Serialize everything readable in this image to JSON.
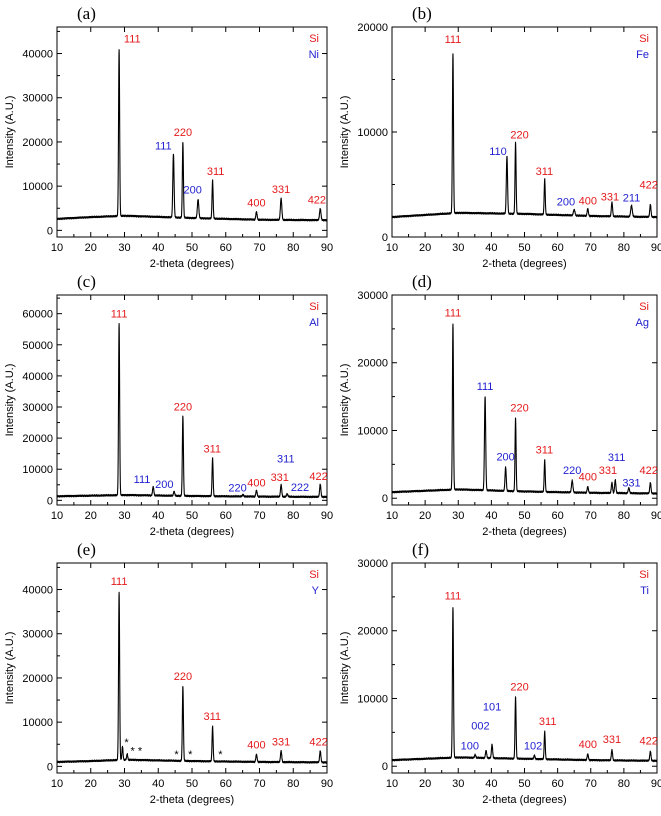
{
  "figure": {
    "colors": {
      "si": "#e41a1c",
      "metal": "#1f1fd0",
      "trace": "#000000",
      "axis": "#000000"
    }
  },
  "chart_data": [
    {
      "type": "line",
      "panel": "(a)",
      "metal": "Ni",
      "xlabel": "2-theta (degrees)",
      "ylabel": "Intensity (A.U.)",
      "xlim": [
        10,
        90
      ],
      "ylim": [
        -1500,
        46000
      ],
      "ytick_step": 10000,
      "xticks": [
        10,
        20,
        30,
        40,
        50,
        60,
        70,
        80,
        90
      ],
      "yticks": [
        0,
        10000,
        20000,
        30000,
        40000
      ],
      "legend": [
        {
          "text": "Si",
          "color": "#e41a1c"
        },
        {
          "text": "Ni",
          "color": "#1f1fd0"
        }
      ],
      "background": [
        [
          10,
          2600
        ],
        [
          20,
          3000
        ],
        [
          30,
          3300
        ],
        [
          50,
          2800
        ],
        [
          70,
          2400
        ],
        [
          90,
          2300
        ]
      ],
      "peaks": [
        {
          "x": 28.4,
          "y": 41000,
          "w": 0.3
        },
        {
          "x": 44.5,
          "y": 17300,
          "w": 0.35
        },
        {
          "x": 47.3,
          "y": 19800,
          "w": 0.3
        },
        {
          "x": 51.8,
          "y": 7000,
          "w": 0.4
        },
        {
          "x": 56.1,
          "y": 11300,
          "w": 0.3
        },
        {
          "x": 69.1,
          "y": 4200,
          "w": 0.35
        },
        {
          "x": 76.4,
          "y": 7200,
          "w": 0.4
        },
        {
          "x": 88.0,
          "y": 4900,
          "w": 0.4
        }
      ],
      "labels": [
        {
          "text": "111",
          "x": 32.3,
          "y": 42500,
          "color": "#e41a1c"
        },
        {
          "text": "111",
          "x": 41.5,
          "y": 18300,
          "color": "#1f1fd0"
        },
        {
          "text": "220",
          "x": 47.3,
          "y": 21400,
          "color": "#e41a1c"
        },
        {
          "text": "200",
          "x": 50.2,
          "y": 8300,
          "color": "#1f1fd0"
        },
        {
          "text": "311",
          "x": 57.0,
          "y": 12500,
          "color": "#e41a1c"
        },
        {
          "text": "400",
          "x": 69.1,
          "y": 5400,
          "color": "#e41a1c"
        },
        {
          "text": "331",
          "x": 76.4,
          "y": 8400,
          "color": "#e41a1c"
        },
        {
          "text": "422",
          "x": 87.0,
          "y": 6100,
          "color": "#e41a1c"
        }
      ],
      "markers": []
    },
    {
      "type": "line",
      "panel": "(b)",
      "metal": "Fe",
      "xlabel": "2-theta (degrees)",
      "ylabel": "Intensity (A.U.)",
      "xlim": [
        10,
        90
      ],
      "ylim": [
        0,
        20000
      ],
      "ytick_step": 10000,
      "xticks": [
        10,
        20,
        30,
        40,
        50,
        60,
        70,
        80,
        90
      ],
      "yticks": [
        0,
        10000,
        20000
      ],
      "legend": [
        {
          "text": "Si",
          "color": "#e41a1c"
        },
        {
          "text": "Fe",
          "color": "#1f1fd0"
        }
      ],
      "background": [
        [
          10,
          1900
        ],
        [
          20,
          2100
        ],
        [
          30,
          2300
        ],
        [
          50,
          2200
        ],
        [
          70,
          2000
        ],
        [
          90,
          1900
        ]
      ],
      "peaks": [
        {
          "x": 28.4,
          "y": 17500,
          "w": 0.3
        },
        {
          "x": 44.7,
          "y": 7700,
          "w": 0.35
        },
        {
          "x": 47.3,
          "y": 9000,
          "w": 0.3
        },
        {
          "x": 56.1,
          "y": 5500,
          "w": 0.3
        },
        {
          "x": 65.0,
          "y": 2600,
          "w": 0.45
        },
        {
          "x": 69.1,
          "y": 2700,
          "w": 0.35
        },
        {
          "x": 76.4,
          "y": 3300,
          "w": 0.35
        },
        {
          "x": 82.3,
          "y": 3000,
          "w": 0.45
        },
        {
          "x": 88.0,
          "y": 3100,
          "w": 0.35
        }
      ],
      "labels": [
        {
          "text": "111",
          "x": 28.4,
          "y": 18500,
          "color": "#e41a1c"
        },
        {
          "text": "110",
          "x": 42.0,
          "y": 7800,
          "color": "#1f1fd0"
        },
        {
          "text": "220",
          "x": 48.5,
          "y": 9400,
          "color": "#e41a1c"
        },
        {
          "text": "311",
          "x": 56.0,
          "y": 5900,
          "color": "#e41a1c"
        },
        {
          "text": "200",
          "x": 62.5,
          "y": 3000,
          "color": "#1f1fd0"
        },
        {
          "text": "400",
          "x": 69.1,
          "y": 3100,
          "color": "#e41a1c"
        },
        {
          "text": "331",
          "x": 75.8,
          "y": 3500,
          "color": "#e41a1c"
        },
        {
          "text": "211",
          "x": 82.3,
          "y": 3400,
          "color": "#1f1fd0"
        },
        {
          "text": "422",
          "x": 87.5,
          "y": 4600,
          "color": "#e41a1c"
        }
      ],
      "markers": []
    },
    {
      "type": "line",
      "panel": "(c)",
      "metal": "Al",
      "xlabel": "2-theta (degrees)",
      "ylabel": "Intensity (A.U.)",
      "xlim": [
        10,
        90
      ],
      "ylim": [
        -1500,
        66000
      ],
      "ytick_step": 10000,
      "xticks": [
        10,
        20,
        30,
        40,
        50,
        60,
        70,
        80,
        90
      ],
      "yticks": [
        0,
        10000,
        20000,
        30000,
        40000,
        50000,
        60000
      ],
      "legend": [
        {
          "text": "Si",
          "color": "#e41a1c"
        },
        {
          "text": "Al",
          "color": "#1f1fd0"
        }
      ],
      "background": [
        [
          10,
          1300
        ],
        [
          20,
          1500
        ],
        [
          30,
          1700
        ],
        [
          50,
          1400
        ],
        [
          70,
          1200
        ],
        [
          90,
          1100
        ]
      ],
      "peaks": [
        {
          "x": 28.4,
          "y": 57000,
          "w": 0.3
        },
        {
          "x": 38.5,
          "y": 4400,
          "w": 0.35
        },
        {
          "x": 44.7,
          "y": 2800,
          "w": 0.35
        },
        {
          "x": 47.3,
          "y": 27000,
          "w": 0.3
        },
        {
          "x": 56.1,
          "y": 13500,
          "w": 0.3
        },
        {
          "x": 65.1,
          "y": 1800,
          "w": 0.4
        },
        {
          "x": 69.1,
          "y": 3200,
          "w": 0.35
        },
        {
          "x": 76.4,
          "y": 5000,
          "w": 0.35
        },
        {
          "x": 78.2,
          "y": 2000,
          "w": 0.4
        },
        {
          "x": 88.0,
          "y": 5200,
          "w": 0.35
        }
      ],
      "labels": [
        {
          "text": "111",
          "x": 28.4,
          "y": 58800,
          "color": "#e41a1c"
        },
        {
          "text": "111",
          "x": 35.2,
          "y": 5600,
          "color": "#1f1fd0"
        },
        {
          "text": "200",
          "x": 41.8,
          "y": 4000,
          "color": "#1f1fd0"
        },
        {
          "text": "220",
          "x": 47.3,
          "y": 28800,
          "color": "#e41a1c"
        },
        {
          "text": "311",
          "x": 56.0,
          "y": 15300,
          "color": "#e41a1c"
        },
        {
          "text": "220",
          "x": 63.5,
          "y": 2900,
          "color": "#1f1fd0"
        },
        {
          "text": "400",
          "x": 69.1,
          "y": 4400,
          "color": "#e41a1c"
        },
        {
          "text": "331",
          "x": 76.0,
          "y": 6200,
          "color": "#e41a1c"
        },
        {
          "text": "311",
          "x": 77.8,
          "y": 12200,
          "color": "#1f1fd0"
        },
        {
          "text": "222",
          "x": 82.0,
          "y": 3000,
          "color": "#1f1fd0"
        },
        {
          "text": "422",
          "x": 87.5,
          "y": 6500,
          "color": "#e41a1c"
        }
      ],
      "markers": []
    },
    {
      "type": "line",
      "panel": "(d)",
      "metal": "Ag",
      "xlabel": "2-theta (degrees)",
      "ylabel": "Intensity (A.U.)",
      "xlim": [
        10,
        90
      ],
      "ylim": [
        -1000,
        30000
      ],
      "ytick_step": 10000,
      "xticks": [
        10,
        20,
        30,
        40,
        50,
        60,
        70,
        80,
        90
      ],
      "yticks": [
        0,
        10000,
        20000,
        30000
      ],
      "legend": [
        {
          "text": "Si",
          "color": "#e41a1c"
        },
        {
          "text": "Ag",
          "color": "#1f1fd0"
        }
      ],
      "background": [
        [
          10,
          900
        ],
        [
          20,
          1100
        ],
        [
          30,
          1300
        ],
        [
          50,
          1000
        ],
        [
          70,
          800
        ],
        [
          90,
          700
        ]
      ],
      "peaks": [
        {
          "x": 28.4,
          "y": 25800,
          "w": 0.3
        },
        {
          "x": 38.1,
          "y": 15000,
          "w": 0.35
        },
        {
          "x": 44.3,
          "y": 4600,
          "w": 0.35
        },
        {
          "x": 47.3,
          "y": 11800,
          "w": 0.3
        },
        {
          "x": 56.1,
          "y": 5600,
          "w": 0.3
        },
        {
          "x": 64.4,
          "y": 2600,
          "w": 0.4
        },
        {
          "x": 69.1,
          "y": 1700,
          "w": 0.35
        },
        {
          "x": 76.4,
          "y": 2300,
          "w": 0.35
        },
        {
          "x": 77.4,
          "y": 2700,
          "w": 0.35
        },
        {
          "x": 81.5,
          "y": 1500,
          "w": 0.4
        },
        {
          "x": 88.0,
          "y": 2300,
          "w": 0.35
        }
      ],
      "labels": [
        {
          "text": "111",
          "x": 28.4,
          "y": 26800,
          "color": "#e41a1c"
        },
        {
          "text": "111",
          "x": 38.1,
          "y": 16000,
          "color": "#1f1fd0"
        },
        {
          "text": "200",
          "x": 44.3,
          "y": 5600,
          "color": "#1f1fd0"
        },
        {
          "text": "220",
          "x": 48.5,
          "y": 12800,
          "color": "#e41a1c"
        },
        {
          "text": "311",
          "x": 56.0,
          "y": 6600,
          "color": "#e41a1c"
        },
        {
          "text": "220",
          "x": 64.4,
          "y": 3600,
          "color": "#1f1fd0"
        },
        {
          "text": "400",
          "x": 69.1,
          "y": 2600,
          "color": "#e41a1c"
        },
        {
          "text": "331",
          "x": 75.2,
          "y": 3600,
          "color": "#e41a1c"
        },
        {
          "text": "311",
          "x": 77.8,
          "y": 5500,
          "color": "#1f1fd0"
        },
        {
          "text": "331",
          "x": 82.3,
          "y": 1700,
          "color": "#1f1fd0"
        },
        {
          "text": "422",
          "x": 87.5,
          "y": 3600,
          "color": "#e41a1c"
        }
      ],
      "markers": []
    },
    {
      "type": "line",
      "panel": "(e)",
      "metal": "Y",
      "xlabel": "2-theta (degrees)",
      "ylabel": "Intensity (A.U.)",
      "xlim": [
        10,
        90
      ],
      "ylim": [
        -1500,
        46000
      ],
      "ytick_step": 10000,
      "xticks": [
        10,
        20,
        30,
        40,
        50,
        60,
        70,
        80,
        90
      ],
      "yticks": [
        0,
        10000,
        20000,
        30000,
        40000
      ],
      "legend": [
        {
          "text": "Si",
          "color": "#e41a1c"
        },
        {
          "text": "Y",
          "color": "#1f1fd0"
        }
      ],
      "background": [
        [
          10,
          1000
        ],
        [
          20,
          1200
        ],
        [
          30,
          1500
        ],
        [
          50,
          1200
        ],
        [
          70,
          1000
        ],
        [
          90,
          900
        ]
      ],
      "peaks": [
        {
          "x": 28.4,
          "y": 39500,
          "w": 0.3
        },
        {
          "x": 29.4,
          "y": 4500,
          "w": 0.3
        },
        {
          "x": 30.8,
          "y": 2800,
          "w": 0.3
        },
        {
          "x": 47.3,
          "y": 18000,
          "w": 0.3
        },
        {
          "x": 56.1,
          "y": 9000,
          "w": 0.3
        },
        {
          "x": 69.1,
          "y": 2700,
          "w": 0.35
        },
        {
          "x": 76.4,
          "y": 3500,
          "w": 0.35
        },
        {
          "x": 88.0,
          "y": 3500,
          "w": 0.35
        }
      ],
      "labels": [
        {
          "text": "111",
          "x": 28.4,
          "y": 41000,
          "color": "#e41a1c"
        },
        {
          "text": "220",
          "x": 47.3,
          "y": 19500,
          "color": "#e41a1c"
        },
        {
          "text": "311",
          "x": 56.0,
          "y": 10500,
          "color": "#e41a1c"
        },
        {
          "text": "400",
          "x": 69.1,
          "y": 4000,
          "color": "#e41a1c"
        },
        {
          "text": "331",
          "x": 76.4,
          "y": 4700,
          "color": "#e41a1c"
        },
        {
          "text": "422",
          "x": 87.5,
          "y": 4700,
          "color": "#e41a1c"
        }
      ],
      "markers": [
        {
          "text": "*",
          "x": 30.6,
          "y": 4600
        },
        {
          "text": "*",
          "x": 32.4,
          "y": 2700
        },
        {
          "text": "*",
          "x": 34.6,
          "y": 2700
        },
        {
          "text": "*",
          "x": 45.4,
          "y": 1900
        },
        {
          "text": "*",
          "x": 49.5,
          "y": 1900
        },
        {
          "text": "*",
          "x": 58.4,
          "y": 1900
        }
      ]
    },
    {
      "type": "line",
      "panel": "(f)",
      "metal": "Ti",
      "xlabel": "2-theta (degrees)",
      "ylabel": "Intensity (A.U.)",
      "xlim": [
        10,
        90
      ],
      "ylim": [
        -1000,
        30000
      ],
      "ytick_step": 10000,
      "xticks": [
        10,
        20,
        30,
        40,
        50,
        60,
        70,
        80,
        90
      ],
      "yticks": [
        0,
        10000,
        20000,
        30000
      ],
      "legend": [
        {
          "text": "Si",
          "color": "#e41a1c"
        },
        {
          "text": "Ti",
          "color": "#1f1fd0"
        }
      ],
      "background": [
        [
          10,
          900
        ],
        [
          20,
          1100
        ],
        [
          30,
          1300
        ],
        [
          50,
          1100
        ],
        [
          70,
          900
        ],
        [
          90,
          800
        ]
      ],
      "peaks": [
        {
          "x": 28.4,
          "y": 23500,
          "w": 0.3
        },
        {
          "x": 35.1,
          "y": 1700,
          "w": 0.35
        },
        {
          "x": 38.4,
          "y": 2300,
          "w": 0.35
        },
        {
          "x": 40.2,
          "y": 3200,
          "w": 0.35
        },
        {
          "x": 47.3,
          "y": 10200,
          "w": 0.3
        },
        {
          "x": 53.0,
          "y": 1600,
          "w": 0.35
        },
        {
          "x": 56.1,
          "y": 5100,
          "w": 0.3
        },
        {
          "x": 69.1,
          "y": 1800,
          "w": 0.35
        },
        {
          "x": 76.4,
          "y": 2400,
          "w": 0.35
        },
        {
          "x": 88.0,
          "y": 2200,
          "w": 0.35
        }
      ],
      "labels": [
        {
          "text": "111",
          "x": 28.4,
          "y": 24600,
          "color": "#e41a1c"
        },
        {
          "text": "100",
          "x": 33.5,
          "y": 2500,
          "color": "#1f1fd0"
        },
        {
          "text": "002",
          "x": 36.7,
          "y": 5400,
          "color": "#1f1fd0"
        },
        {
          "text": "101",
          "x": 40.2,
          "y": 8200,
          "color": "#1f1fd0"
        },
        {
          "text": "220",
          "x": 48.5,
          "y": 11200,
          "color": "#e41a1c"
        },
        {
          "text": "102",
          "x": 52.6,
          "y": 2500,
          "color": "#1f1fd0"
        },
        {
          "text": "311",
          "x": 57.0,
          "y": 6100,
          "color": "#e41a1c"
        },
        {
          "text": "400",
          "x": 69.1,
          "y": 2700,
          "color": "#e41a1c"
        },
        {
          "text": "331",
          "x": 76.4,
          "y": 3400,
          "color": "#e41a1c"
        },
        {
          "text": "422",
          "x": 87.5,
          "y": 3200,
          "color": "#e41a1c"
        }
      ],
      "markers": []
    }
  ]
}
